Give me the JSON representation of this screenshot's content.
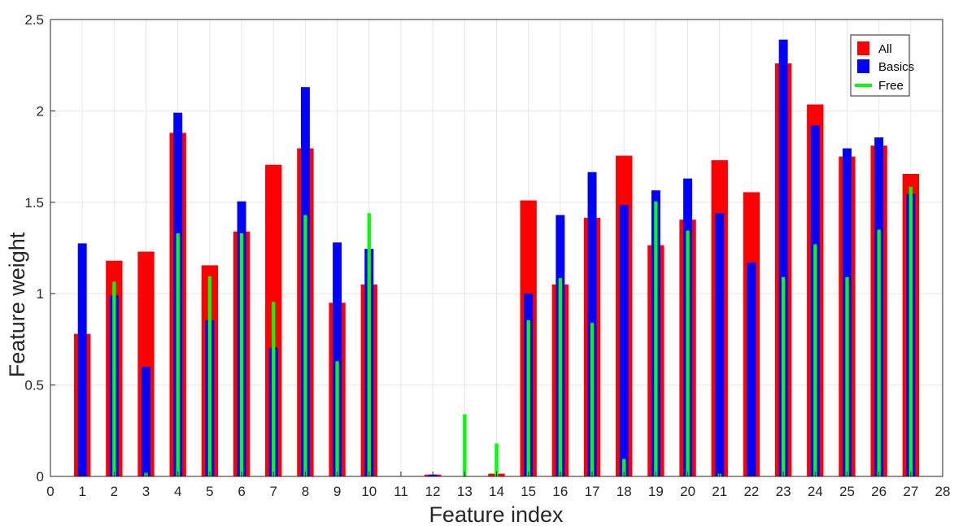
{
  "chart_data": {
    "type": "bar",
    "title": "",
    "xlabel": "Feature index",
    "ylabel": "Feature weight",
    "xlim": [
      0,
      28
    ],
    "ylim": [
      0,
      2.5
    ],
    "xticks": [
      0,
      1,
      2,
      3,
      4,
      5,
      6,
      7,
      8,
      9,
      10,
      11,
      12,
      13,
      14,
      15,
      16,
      17,
      18,
      19,
      20,
      21,
      22,
      23,
      24,
      25,
      26,
      27,
      28
    ],
    "yticks": [
      0,
      0.5,
      1,
      1.5,
      2,
      2.5
    ],
    "ytick_labels": [
      "0",
      "0.5",
      "1",
      "1.5",
      "2",
      "2.5"
    ],
    "grid": true,
    "legend_position": "top-right",
    "categories": [
      1,
      2,
      3,
      4,
      5,
      6,
      7,
      8,
      9,
      10,
      11,
      12,
      13,
      14,
      15,
      16,
      17,
      18,
      19,
      20,
      21,
      22,
      23,
      24,
      25,
      26,
      27
    ],
    "series": [
      {
        "name": "All",
        "color": "#ff0000",
        "values": [
          0.78,
          1.18,
          1.23,
          1.88,
          1.155,
          1.34,
          1.705,
          1.795,
          0.95,
          1.05,
          0,
          0.01,
          0,
          0.015,
          1.51,
          1.05,
          1.415,
          1.755,
          1.265,
          1.405,
          1.73,
          1.555,
          2.26,
          2.035,
          1.75,
          1.81,
          1.655
        ]
      },
      {
        "name": "Basics",
        "color": "#0000ff",
        "values": [
          1.275,
          0.99,
          0.6,
          1.99,
          0.855,
          1.505,
          0.705,
          2.13,
          1.28,
          1.245,
          0,
          0.01,
          0,
          0,
          1.0,
          1.43,
          1.665,
          1.485,
          1.565,
          1.63,
          1.44,
          1.17,
          2.39,
          1.92,
          1.795,
          1.855,
          1.545
        ]
      },
      {
        "name": "Free",
        "color": "#00ff00",
        "values": [
          0,
          1.065,
          0.02,
          1.33,
          1.095,
          1.33,
          0.955,
          1.43,
          0.63,
          1.44,
          0,
          0,
          0.34,
          0.18,
          0.855,
          1.085,
          0.84,
          0.095,
          1.505,
          1.345,
          0.015,
          0,
          1.09,
          1.27,
          1.09,
          1.35,
          1.585
        ]
      }
    ]
  }
}
